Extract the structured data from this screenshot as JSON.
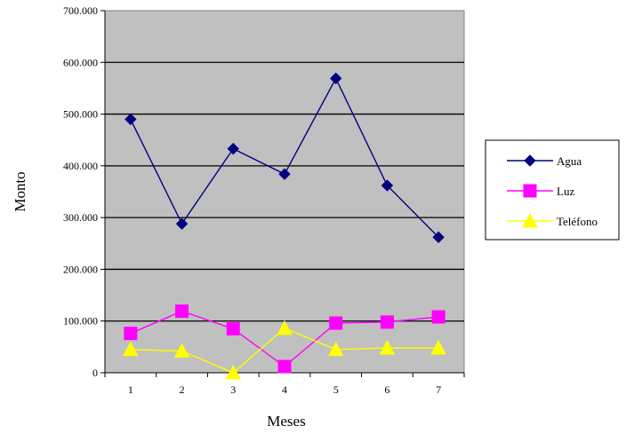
{
  "chart_data": {
    "type": "line",
    "xlabel": "Meses",
    "ylabel": "Monto",
    "categories": [
      "1",
      "2",
      "3",
      "4",
      "5",
      "6",
      "7"
    ],
    "ylim": [
      0,
      700000
    ],
    "y_ticks": [
      0,
      100000,
      200000,
      300000,
      400000,
      500000,
      600000,
      700000
    ],
    "y_tick_labels": [
      "0",
      "100.000",
      "200.000",
      "300.000",
      "400.000",
      "500.000",
      "600.000",
      "700.000"
    ],
    "grid": "horizontal",
    "plot_background": "#c0c0c0",
    "legend_position": "right",
    "series": [
      {
        "name": "Agua",
        "color": "#000080",
        "marker": "diamond",
        "values": [
          490000,
          288000,
          433000,
          384000,
          569000,
          362000,
          262000
        ]
      },
      {
        "name": "Luz",
        "color": "#ff00ff",
        "marker": "square",
        "values": [
          76000,
          119000,
          85000,
          12000,
          96000,
          98000,
          108000
        ]
      },
      {
        "name": "Teléfono",
        "color": "#ffff00",
        "marker": "triangle",
        "values": [
          45000,
          42000,
          0,
          86000,
          45000,
          48000,
          48000
        ]
      }
    ]
  }
}
